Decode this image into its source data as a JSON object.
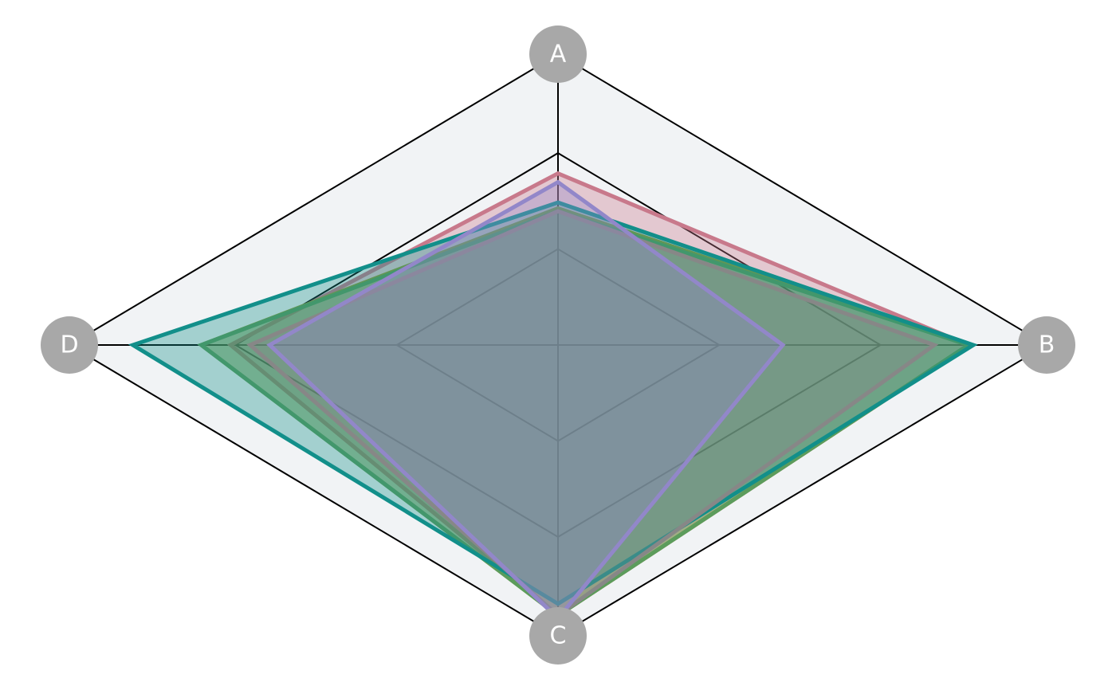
{
  "chart_data": {
    "type": "radar",
    "axes": [
      "A",
      "B",
      "C",
      "D"
    ],
    "rlim": [
      0,
      1
    ],
    "grid_levels": [
      0.33,
      0.66,
      1.0
    ],
    "grid": true,
    "legend": "none",
    "series": [
      {
        "color": "#c8798b",
        "values": [
          0.59,
          0.84,
          0.93,
          0.67
        ]
      },
      {
        "color": "#8b9a3a",
        "values": [
          0.47,
          0.84,
          0.93,
          0.73
        ]
      },
      {
        "color": "#5c9c5c",
        "values": [
          0.46,
          0.84,
          0.93,
          0.73
        ]
      },
      {
        "color": "#128f8a",
        "values": [
          0.49,
          0.85,
          0.89,
          0.87
        ]
      },
      {
        "color": "#878787",
        "values": [
          0.46,
          0.77,
          0.93,
          0.63
        ]
      },
      {
        "color": "#9287c9",
        "values": [
          0.56,
          0.46,
          0.94,
          0.59
        ]
      }
    ],
    "colors": {
      "background": "#f1f3f5",
      "axis_circle": "#a8a8a8",
      "fill_under": "#8fa7ae"
    }
  }
}
